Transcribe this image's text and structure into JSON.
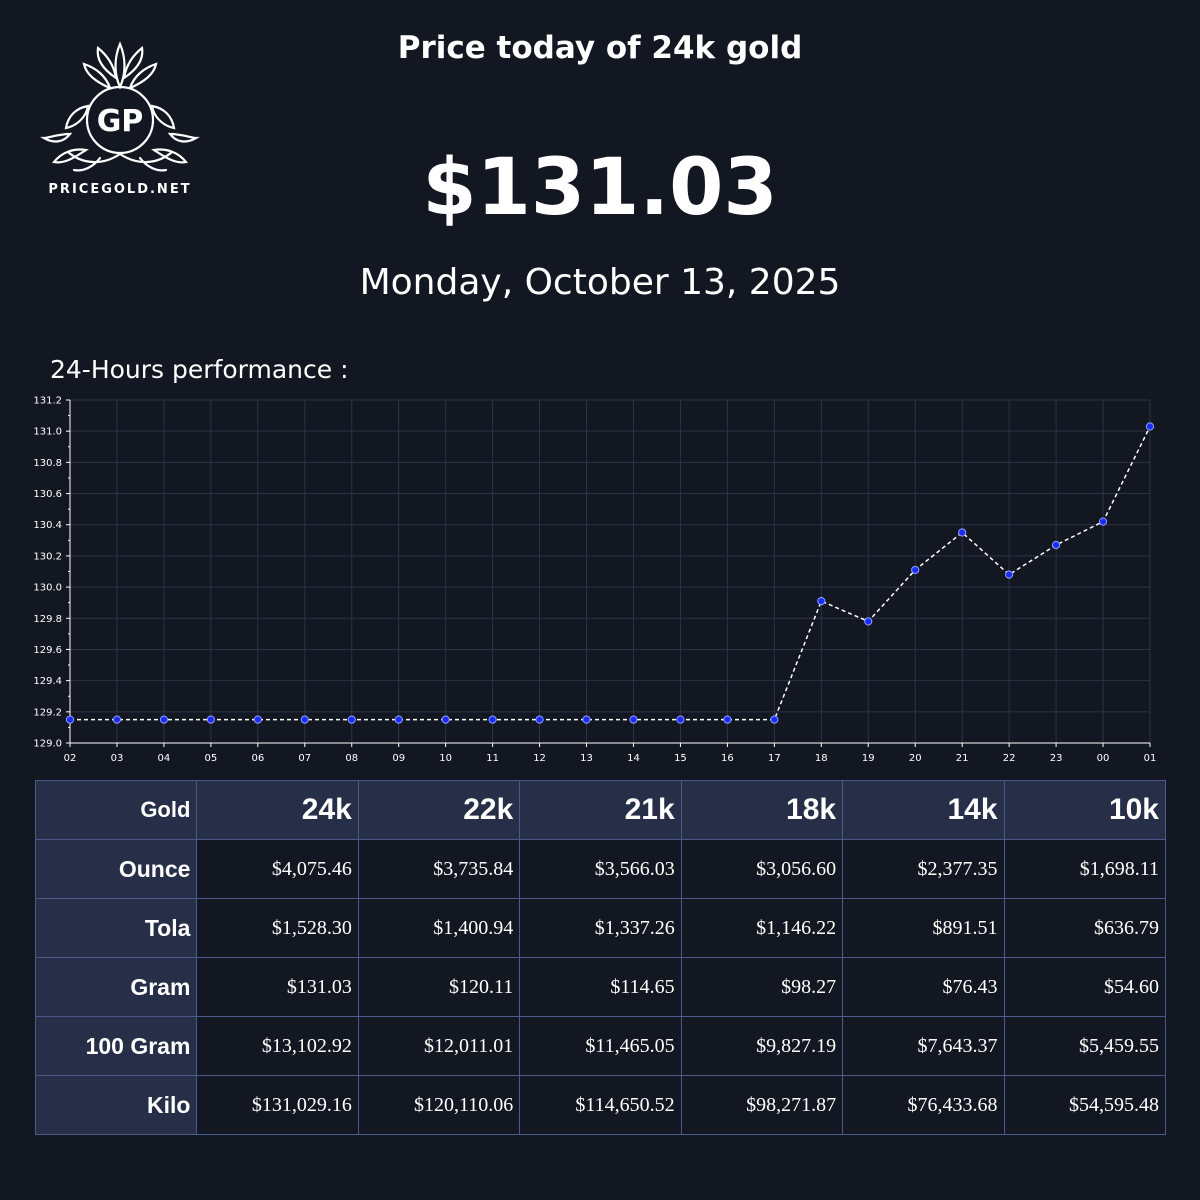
{
  "brand": {
    "logo_monogram": "GP",
    "logo_text": "PRICEGOLD.NET"
  },
  "header": {
    "title": "Price today of 24k gold",
    "price": "$131.03",
    "date": "Monday, October 13, 2025"
  },
  "performance_label": "24-Hours performance :",
  "colors": {
    "background": "#131721",
    "table_header_bg": "#262e48",
    "grid": "#2c3348",
    "line": "#ffffff",
    "marker_fill": "#1d2cf3",
    "marker_edge": "#8fa0ff"
  },
  "chart_data": {
    "type": "line",
    "title": "",
    "xlabel": "",
    "ylabel": "",
    "categories": [
      "02",
      "03",
      "04",
      "05",
      "06",
      "07",
      "08",
      "09",
      "10",
      "11",
      "12",
      "13",
      "14",
      "15",
      "16",
      "17",
      "18",
      "19",
      "20",
      "21",
      "22",
      "23",
      "00",
      "01"
    ],
    "series": [
      {
        "values": [
          129.15,
          129.15,
          129.15,
          129.15,
          129.15,
          129.15,
          129.15,
          129.15,
          129.15,
          129.15,
          129.15,
          129.15,
          129.15,
          129.15,
          129.15,
          129.15,
          129.91,
          129.78,
          130.11,
          130.35,
          130.08,
          130.27,
          130.42,
          131.03
        ]
      }
    ],
    "ylim": [
      129.0,
      131.2
    ],
    "yticks": [
      "129.0",
      "129.2",
      "129.4",
      "129.6",
      "129.8",
      "130.0",
      "130.2",
      "130.4",
      "130.6",
      "130.8",
      "131.0",
      "131.2"
    ],
    "grid": true,
    "line_style": "dashed",
    "markers": true
  },
  "table": {
    "corner": "Gold",
    "columns": [
      "24k",
      "22k",
      "21k",
      "18k",
      "14k",
      "10k"
    ],
    "rows": [
      {
        "label": "Ounce",
        "values": [
          "$4,075.46",
          "$3,735.84",
          "$3,566.03",
          "$3,056.60",
          "$2,377.35",
          "$1,698.11"
        ]
      },
      {
        "label": "Tola",
        "values": [
          "$1,528.30",
          "$1,400.94",
          "$1,337.26",
          "$1,146.22",
          "$891.51",
          "$636.79"
        ]
      },
      {
        "label": "Gram",
        "values": [
          "$131.03",
          "$120.11",
          "$114.65",
          "$98.27",
          "$76.43",
          "$54.60"
        ]
      },
      {
        "label": "100 Gram",
        "values": [
          "$13,102.92",
          "$12,011.01",
          "$11,465.05",
          "$9,827.19",
          "$7,643.37",
          "$5,459.55"
        ]
      },
      {
        "label": "Kilo",
        "values": [
          "$131,029.16",
          "$120,110.06",
          "$114,650.52",
          "$98,271.87",
          "$76,433.68",
          "$54,595.48"
        ]
      }
    ]
  }
}
